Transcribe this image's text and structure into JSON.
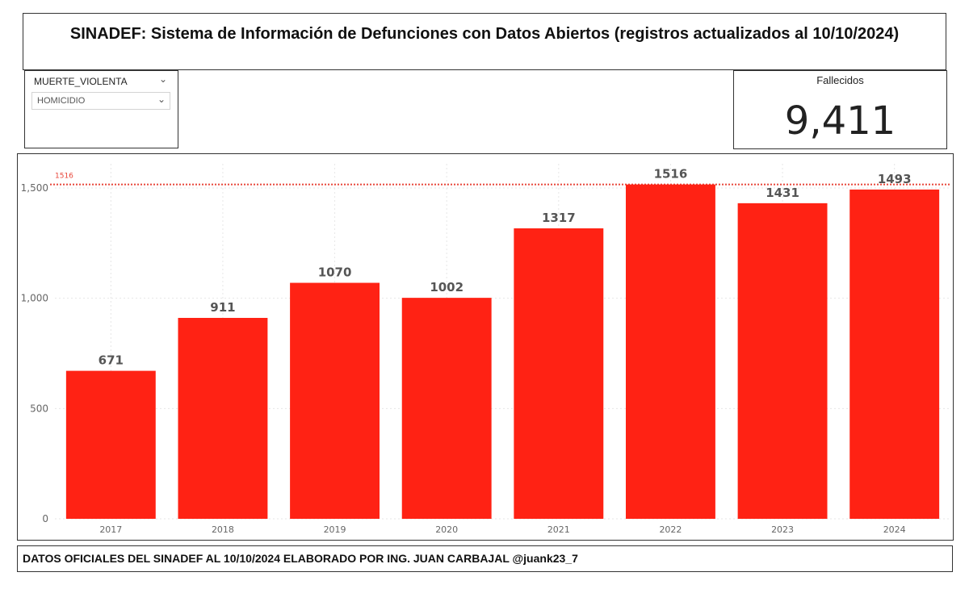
{
  "header": {
    "title": "SINADEF: Sistema de Información de Defunciones con Datos Abiertos (registros actualizados al 10/10/2024)"
  },
  "slicer": {
    "field": "MUERTE_VIOLENTA",
    "selected": "HOMICIDIO"
  },
  "card": {
    "label": "Fallecidos",
    "value": "9,411"
  },
  "footer": {
    "text": "DATOS OFICIALES DEL SINADEF AL 10/10/2024 ELABORADO POR ING. JUAN CARBAJAL @juank23_7"
  },
  "colors": {
    "bar": "#ff2214",
    "refline": "#e8463a",
    "data_label": "#555555",
    "tick": "#666666",
    "grid": "#e6e6e6"
  },
  "chart_data": {
    "type": "bar",
    "categories": [
      "2017",
      "2018",
      "2019",
      "2020",
      "2021",
      "2022",
      "2023",
      "2024"
    ],
    "values": [
      671,
      911,
      1070,
      1002,
      1317,
      1516,
      1431,
      1493
    ],
    "data_labels": [
      "671",
      "911",
      "1070",
      "1002",
      "1317",
      "1516",
      "1431",
      "1493"
    ],
    "ylim": [
      0,
      1500
    ],
    "yticks": [
      0,
      500,
      1000,
      1500
    ],
    "ytick_labels": [
      "0",
      "500",
      "1,000",
      "1,500"
    ],
    "reference_line": {
      "value": 1516,
      "label": "1516"
    },
    "grid": true,
    "legend": false,
    "title": "",
    "xlabel": "",
    "ylabel": ""
  }
}
